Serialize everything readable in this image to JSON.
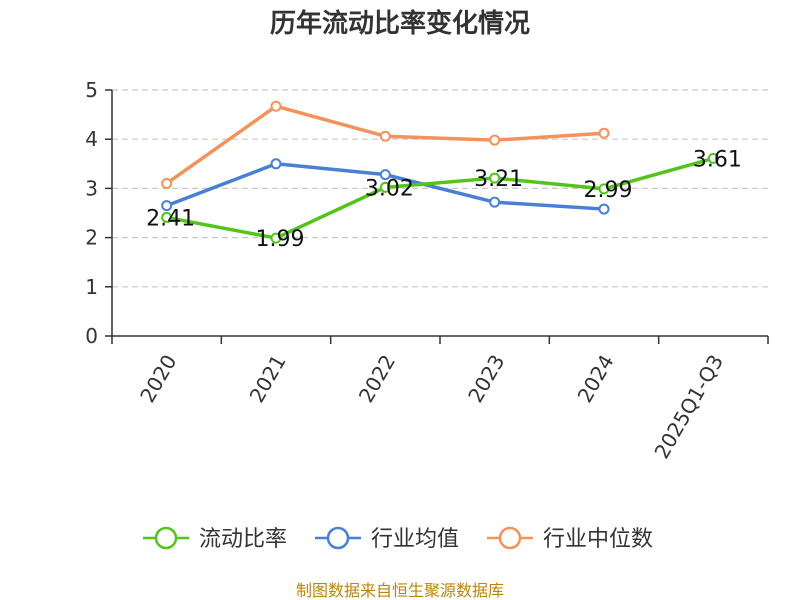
{
  "chart_data": {
    "type": "line",
    "title": "历年流动比率变化情况",
    "categories": [
      "2020",
      "2021",
      "2022",
      "2023",
      "2024",
      "2025Q1-Q3"
    ],
    "ylim": [
      0,
      5
    ],
    "yticks": [
      0,
      1,
      2,
      3,
      4,
      5
    ],
    "grid": true,
    "legend_position": "bottom",
    "series": [
      {
        "name": "流动比率",
        "color": "#52c41a",
        "values": [
          2.41,
          1.99,
          3.02,
          3.21,
          2.99,
          3.61
        ],
        "data_labels": [
          "2.41",
          "1.99",
          "3.02",
          "3.21",
          "2.99",
          "3.61"
        ]
      },
      {
        "name": "行业均值",
        "color": "#4a7fd6",
        "values": [
          2.65,
          3.5,
          3.28,
          2.72,
          2.58,
          null
        ]
      },
      {
        "name": "行业中位数",
        "color": "#f4925c",
        "values": [
          3.1,
          4.67,
          4.06,
          3.98,
          4.12,
          null
        ]
      }
    ],
    "source": "制图数据来自恒生聚源数据库"
  }
}
